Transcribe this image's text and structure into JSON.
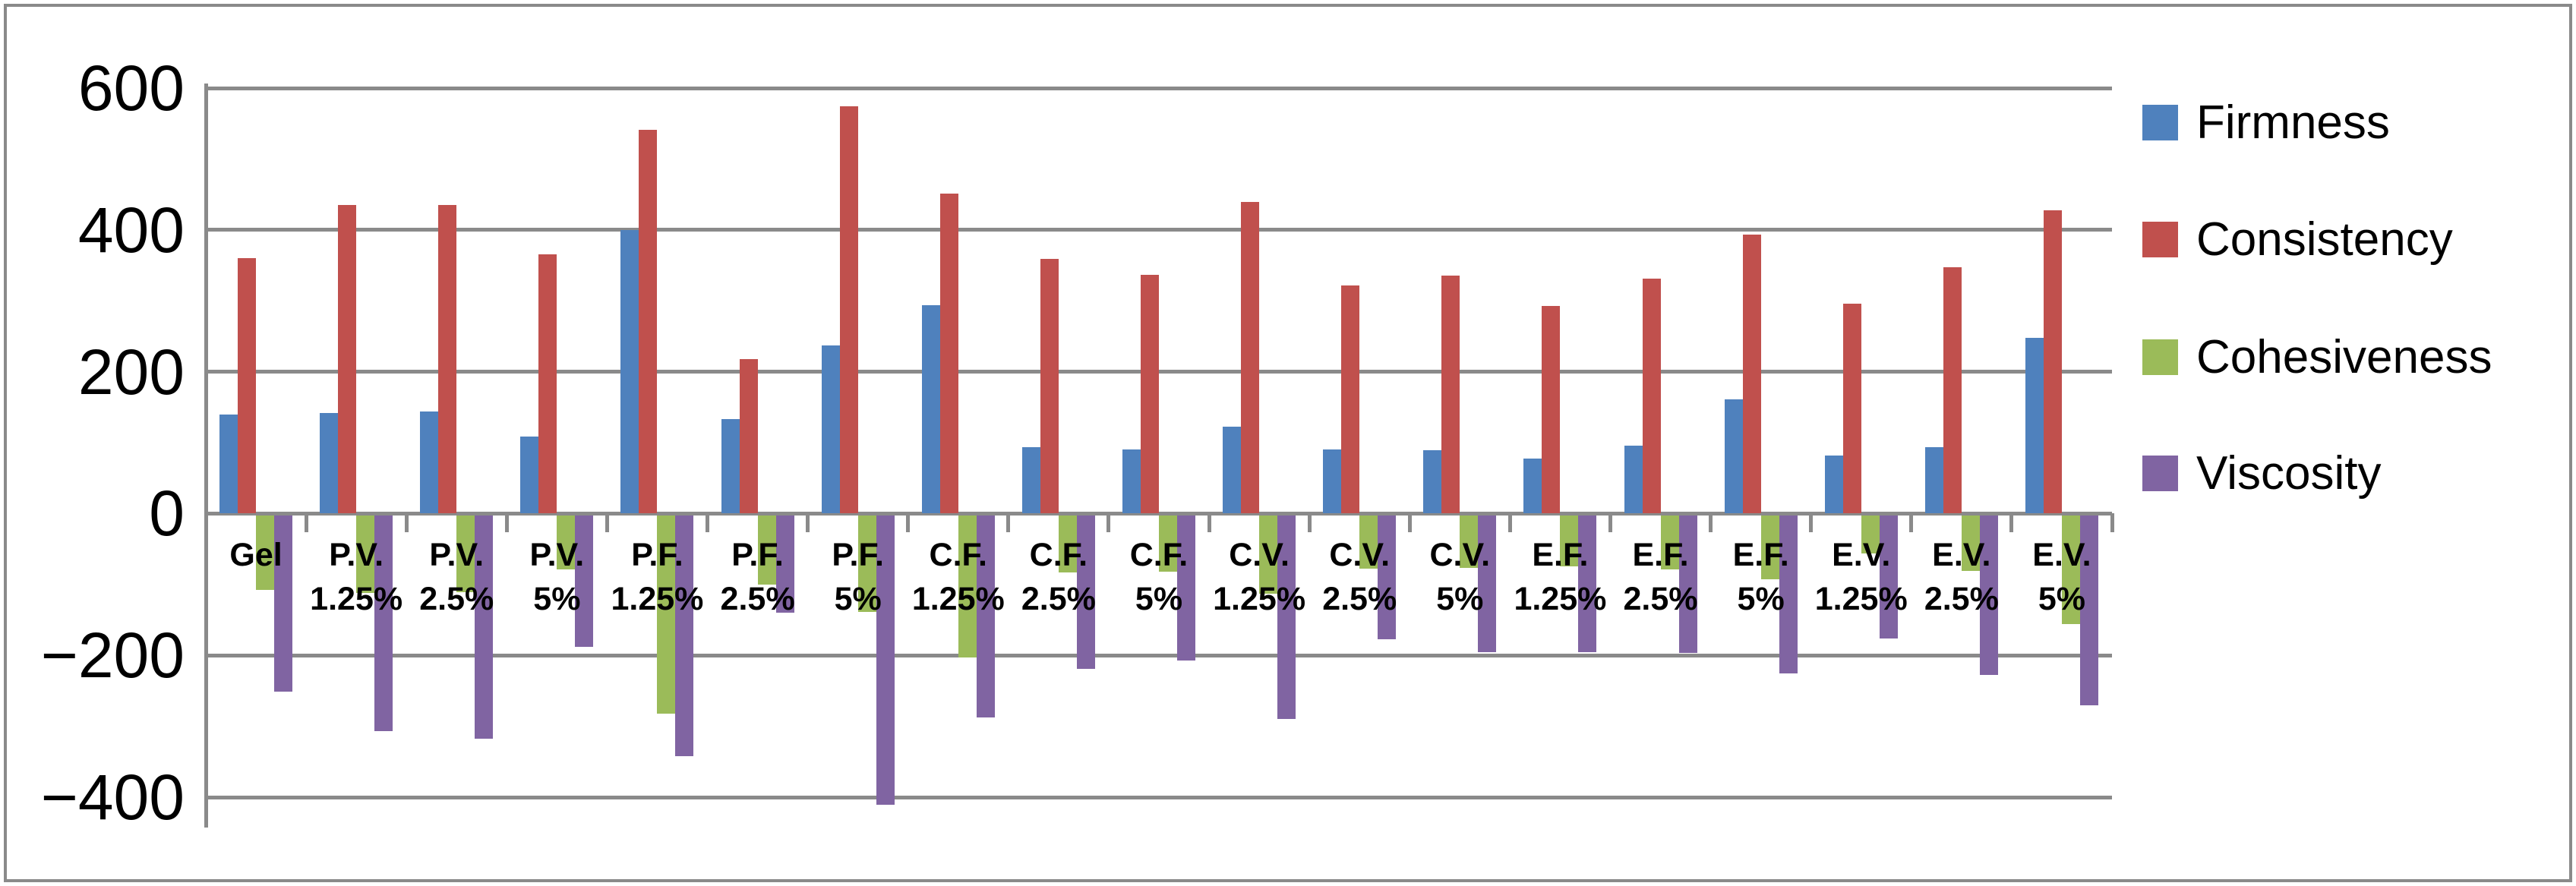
{
  "chart_data": {
    "type": "bar",
    "title": "",
    "xlabel": "",
    "ylabel": "",
    "ylim": [
      -400,
      600
    ],
    "ytick_interval": 200,
    "yticks": [
      600,
      400,
      200,
      0,
      -200,
      -400
    ],
    "ytick_labels": [
      "600",
      "400",
      "200",
      "0",
      "−200",
      "−400"
    ],
    "grid": true,
    "legend_position": "right",
    "background_color": "#FFFFFF",
    "gridline_color": "#8A8A8A",
    "categories": [
      "Gel",
      "P.V. 1.25%",
      "P.V. 2.5%",
      "P.V. 5%",
      "P.F. 1.25%",
      "P.F. 2.5%",
      "P.F. 5%",
      "C.F. 1.25%",
      "C.F. 2.5%",
      "C.F. 5%",
      "C.V. 1.25%",
      "C.V. 2.5%",
      "C.V. 5%",
      "E.F. 1.25%",
      "E.F. 2.5%",
      "E.F. 5%",
      "E.V. 1.25%",
      "E.V. 2.5%",
      "E.V. 5%"
    ],
    "categories_lines": [
      [
        "Gel"
      ],
      [
        "P.V.",
        "1.25%"
      ],
      [
        "P.V.",
        "2.5%"
      ],
      [
        "P.V.",
        "5%"
      ],
      [
        "P.F.",
        "1.25%"
      ],
      [
        "P.F.",
        "2.5%"
      ],
      [
        "P.F.",
        "5%"
      ],
      [
        "C.F.",
        "1.25%"
      ],
      [
        "C.F.",
        "2.5%"
      ],
      [
        "C.F.",
        "5%"
      ],
      [
        "C.V.",
        "1.25%"
      ],
      [
        "C.V.",
        "2.5%"
      ],
      [
        "C.V.",
        "5%"
      ],
      [
        "E.F.",
        "1.25%"
      ],
      [
        "E.F.",
        "2.5%"
      ],
      [
        "E.F.",
        "5%"
      ],
      [
        "E.V.",
        "1.25%"
      ],
      [
        "E.V.",
        "2.5%"
      ],
      [
        "E.V.",
        "5%"
      ]
    ],
    "series": [
      {
        "name": "Firmness",
        "color": "#4F81BD",
        "values": [
          140,
          142,
          144,
          109,
          400,
          133,
          237,
          294,
          94,
          90,
          123,
          90,
          89,
          77,
          96,
          161,
          82,
          94,
          248
        ]
      },
      {
        "name": "Consistency",
        "color": "#C0504D",
        "values": [
          360,
          435,
          435,
          366,
          541,
          218,
          574,
          451,
          359,
          337,
          439,
          322,
          336,
          293,
          331,
          393,
          296,
          347,
          428
        ]
      },
      {
        "name": "Cohesiveness",
        "color": "#9BBB59",
        "values": [
          -105,
          -109,
          -108,
          -76,
          -280,
          -98,
          -136,
          -200,
          -80,
          -79,
          -110,
          -75,
          -74,
          -72,
          -76,
          -90,
          -54,
          -78,
          -153
        ]
      },
      {
        "name": "Viscosity",
        "color": "#8064A2",
        "values": [
          -249,
          -304,
          -315,
          -185,
          -339,
          -137,
          -408,
          -285,
          -216,
          -205,
          -287,
          -175,
          -193,
          -193,
          -194,
          -223,
          -174,
          -225,
          -268
        ]
      }
    ]
  }
}
